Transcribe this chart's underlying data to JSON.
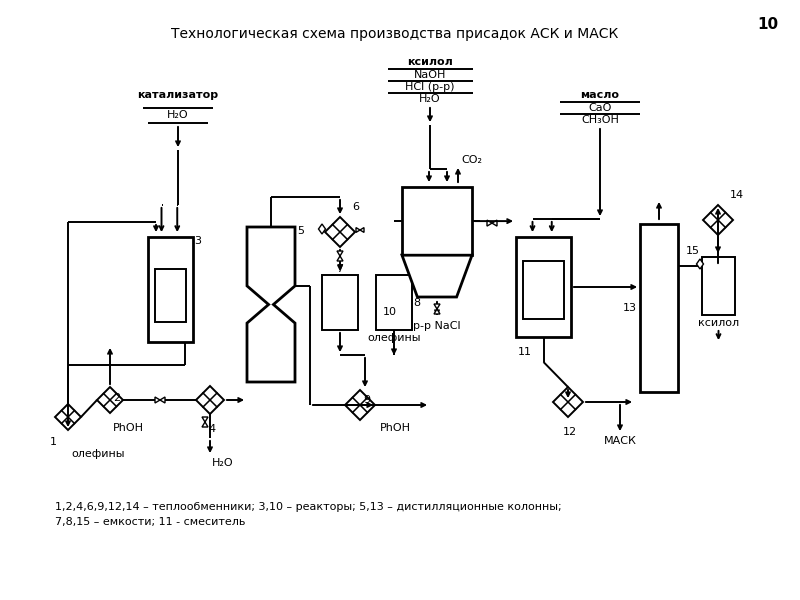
{
  "title": "Технологическая схема производства присадок АСК и МАСК",
  "page_number": "10",
  "legend": "1,2,4,6,9,12,14 – теплообменники; 3,10 – реакторы; 5,13 – дистилляционные колонны;\n7,8,15 – емкости; 11 - смеситель",
  "bg": "#ffffff",
  "fs": 8,
  "fs_title": 10,
  "lw": 1.4,
  "lwt": 2.0
}
